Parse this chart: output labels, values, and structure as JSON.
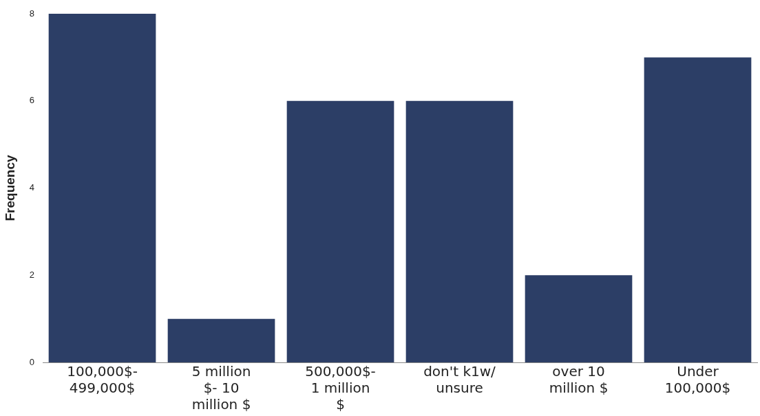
{
  "chart_data": {
    "type": "bar",
    "ylabel": "Frequency",
    "categories": [
      "100,000$- 499,000$",
      "5 million $- 10 million $",
      "500,000$- 1 million $",
      "don't k1w/ unsure",
      "over 10 million $",
      "Under 100,000$"
    ],
    "values": [
      8,
      1,
      6,
      6,
      2,
      7
    ],
    "color": "#2c3e66",
    "ylim": [
      0,
      8
    ],
    "yticks": [
      0,
      2,
      4,
      6,
      8
    ],
    "grid": false,
    "legend": false
  }
}
